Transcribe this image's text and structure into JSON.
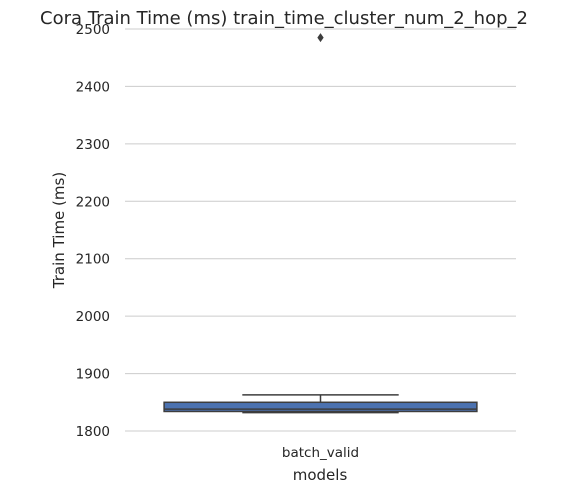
{
  "chart_data": {
    "type": "box",
    "title": "Cora Train Time (ms) train_time_cluster_num_2_hop_2",
    "xlabel": "models",
    "ylabel": "Train Time (ms)",
    "ylim": [
      1800,
      2500
    ],
    "yticks": [
      1800,
      1900,
      2000,
      2100,
      2200,
      2300,
      2400,
      2500
    ],
    "grid": "horizontal",
    "categories": [
      "batch_valid"
    ],
    "boxes": [
      {
        "category": "batch_valid",
        "whisker_low": 1832,
        "q1": 1834,
        "median": 1838,
        "q3": 1850,
        "whisker_high": 1863,
        "outliers": [
          2485
        ]
      }
    ]
  },
  "colors": {
    "box_fill": "#4c72b0",
    "box_edge": "#3d3d3d",
    "grid": "#cccccc",
    "text": "#262626"
  }
}
